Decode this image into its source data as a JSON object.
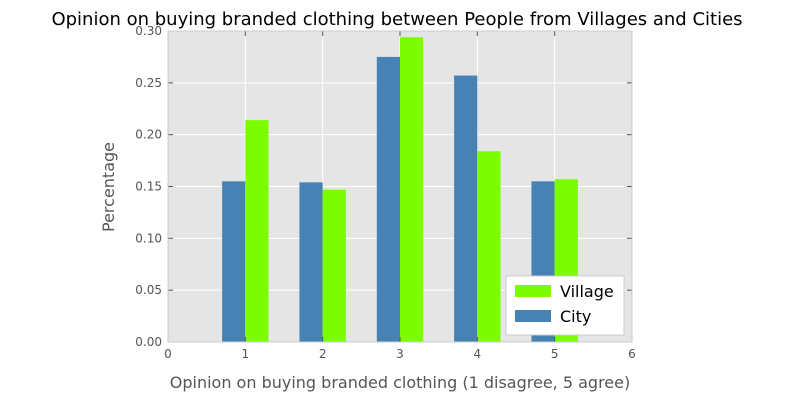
{
  "chart_data": {
    "type": "bar",
    "title": "Opinion on buying branded clothing between People from Villages and Cities",
    "xlabel": "Opinion on buying branded clothing (1 disagree, 5 agree)",
    "ylabel": "Percentage",
    "xlim": [
      0,
      6
    ],
    "ylim": [
      0,
      0.3
    ],
    "xticks": [
      "0",
      "1",
      "2",
      "3",
      "4",
      "5",
      "6"
    ],
    "yticks": [
      "0.00",
      "0.05",
      "0.10",
      "0.15",
      "0.20",
      "0.25",
      "0.30"
    ],
    "categories": [
      1,
      2,
      3,
      4,
      5
    ],
    "series": [
      {
        "name": "City",
        "color": "#4682b4",
        "values": [
          0.155,
          0.154,
          0.275,
          0.257,
          0.155
        ]
      },
      {
        "name": "Village",
        "color": "#7cfc00",
        "values": [
          0.214,
          0.147,
          0.294,
          0.184,
          0.157
        ]
      }
    ],
    "legend": {
      "location": "lower-right",
      "order": [
        "Village",
        "City"
      ]
    },
    "grid": true,
    "background": "#e5e5e5",
    "grid_color": "#ffffff"
  }
}
